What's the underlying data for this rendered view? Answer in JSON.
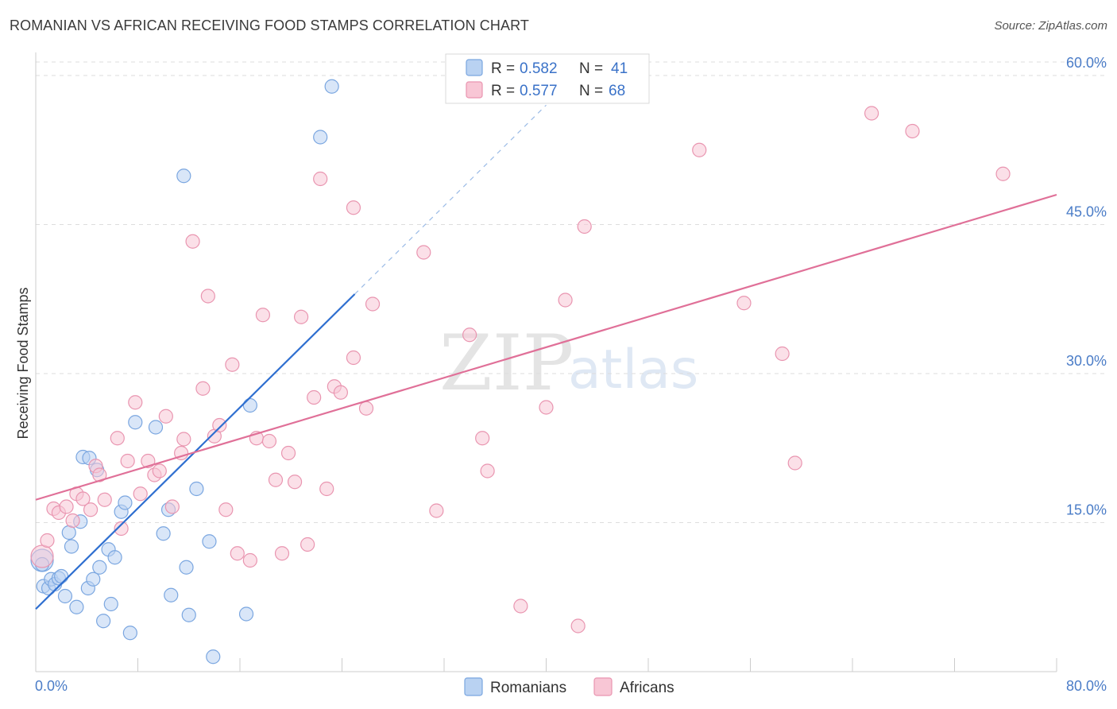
{
  "header": {
    "title": "ROMANIAN VS AFRICAN RECEIVING FOOD STAMPS CORRELATION CHART",
    "source": "Source: ZipAtlas.com"
  },
  "watermark": {
    "zip": "ZIP",
    "atlas": "atlas"
  },
  "legend": {
    "romanians": {
      "r_label": "R =",
      "r_value": "0.582",
      "n_label": "N =",
      "n_value": "41"
    },
    "africans": {
      "r_label": "R =",
      "r_value": "0.577",
      "n_label": "N =",
      "n_value": "68"
    }
  },
  "colors": {
    "romanians_fill": "#b9d2f2",
    "romanians_stroke": "#7aa6e0",
    "romanians_line": "#2f6fd0",
    "africans_fill": "#f8c6d5",
    "africans_stroke": "#e995b0",
    "africans_line": "#e07098",
    "grid": "#dddddd",
    "tick_label": "#4a7cc7"
  },
  "chart_data": {
    "type": "scatter",
    "title": "ROMANIAN VS AFRICAN RECEIVING FOOD STAMPS CORRELATION CHART",
    "xlabel": "",
    "ylabel": "Receiving Food Stamps",
    "xlim": [
      0,
      80
    ],
    "ylim": [
      0,
      62
    ],
    "x_tick_labels": [
      "0.0%",
      "80.0%"
    ],
    "y_ticks": [
      15,
      30,
      45,
      60
    ],
    "y_tick_labels": [
      "15.0%",
      "30.0%",
      "45.0%",
      "60.0%"
    ],
    "grid": true,
    "legend_position": "top-center",
    "series": [
      {
        "name": "Romanians",
        "points": [
          [
            0.5,
            11.2
          ],
          [
            0.5,
            10.8
          ],
          [
            0.6,
            8.6
          ],
          [
            1.0,
            8.4
          ],
          [
            1.2,
            9.3
          ],
          [
            1.5,
            8.8
          ],
          [
            1.8,
            9.4
          ],
          [
            2.0,
            9.6
          ],
          [
            2.3,
            7.6
          ],
          [
            2.6,
            14.0
          ],
          [
            2.8,
            12.6
          ],
          [
            3.2,
            6.5
          ],
          [
            3.5,
            15.1
          ],
          [
            3.7,
            21.6
          ],
          [
            4.1,
            8.4
          ],
          [
            4.2,
            21.5
          ],
          [
            4.5,
            9.3
          ],
          [
            4.8,
            20.3
          ],
          [
            5.0,
            10.5
          ],
          [
            5.3,
            5.1
          ],
          [
            5.7,
            12.3
          ],
          [
            5.9,
            6.8
          ],
          [
            6.2,
            11.5
          ],
          [
            6.7,
            16.1
          ],
          [
            7.0,
            17.0
          ],
          [
            7.4,
            3.9
          ],
          [
            7.8,
            25.1
          ],
          [
            9.4,
            24.6
          ],
          [
            10.0,
            13.9
          ],
          [
            10.4,
            16.3
          ],
          [
            10.6,
            7.7
          ],
          [
            11.6,
            49.9
          ],
          [
            11.8,
            10.5
          ],
          [
            12.0,
            5.7
          ],
          [
            12.6,
            18.4
          ],
          [
            13.6,
            13.1
          ],
          [
            13.9,
            1.5
          ],
          [
            16.5,
            5.8
          ],
          [
            16.8,
            26.8
          ],
          [
            22.3,
            53.8
          ],
          [
            23.2,
            58.9
          ]
        ],
        "trend": {
          "x": [
            0,
            25
          ],
          "y": [
            6.3,
            38.0
          ],
          "dashed_extension_to_x": 40
        }
      },
      {
        "name": "Africans",
        "points": [
          [
            0.5,
            11.6
          ],
          [
            0.9,
            13.2
          ],
          [
            1.4,
            16.4
          ],
          [
            1.8,
            16.0
          ],
          [
            2.4,
            16.6
          ],
          [
            2.9,
            15.2
          ],
          [
            3.2,
            17.9
          ],
          [
            3.7,
            17.4
          ],
          [
            4.3,
            16.3
          ],
          [
            4.7,
            20.7
          ],
          [
            5.0,
            19.8
          ],
          [
            5.4,
            17.3
          ],
          [
            6.4,
            23.5
          ],
          [
            6.7,
            14.4
          ],
          [
            7.2,
            21.2
          ],
          [
            7.8,
            27.1
          ],
          [
            8.2,
            17.9
          ],
          [
            8.8,
            21.2
          ],
          [
            9.3,
            19.8
          ],
          [
            9.7,
            20.2
          ],
          [
            10.2,
            25.7
          ],
          [
            10.7,
            16.6
          ],
          [
            11.4,
            22.0
          ],
          [
            11.6,
            23.4
          ],
          [
            12.3,
            43.3
          ],
          [
            13.1,
            28.5
          ],
          [
            13.5,
            37.8
          ],
          [
            14.0,
            23.7
          ],
          [
            14.4,
            24.8
          ],
          [
            14.9,
            16.3
          ],
          [
            15.4,
            30.9
          ],
          [
            15.8,
            11.9
          ],
          [
            16.8,
            11.2
          ],
          [
            17.3,
            23.5
          ],
          [
            17.8,
            35.9
          ],
          [
            18.3,
            23.2
          ],
          [
            18.8,
            19.3
          ],
          [
            19.3,
            11.9
          ],
          [
            19.8,
            22.0
          ],
          [
            20.3,
            19.1
          ],
          [
            20.8,
            35.7
          ],
          [
            21.3,
            12.8
          ],
          [
            21.8,
            27.6
          ],
          [
            22.3,
            49.6
          ],
          [
            22.8,
            18.4
          ],
          [
            23.4,
            28.7
          ],
          [
            23.9,
            28.1
          ],
          [
            24.9,
            46.7
          ],
          [
            24.9,
            31.6
          ],
          [
            25.9,
            26.5
          ],
          [
            26.4,
            37.0
          ],
          [
            30.4,
            42.2
          ],
          [
            31.4,
            16.2
          ],
          [
            34.0,
            33.9
          ],
          [
            35.0,
            23.5
          ],
          [
            35.4,
            20.2
          ],
          [
            38.0,
            6.6
          ],
          [
            40.0,
            26.6
          ],
          [
            41.5,
            37.4
          ],
          [
            42.5,
            4.6
          ],
          [
            43.0,
            44.8
          ],
          [
            52.0,
            52.5
          ],
          [
            55.5,
            37.1
          ],
          [
            58.5,
            32.0
          ],
          [
            59.5,
            21.0
          ],
          [
            65.5,
            56.2
          ],
          [
            68.7,
            54.4
          ],
          [
            75.8,
            50.1
          ]
        ],
        "trend": {
          "x": [
            0,
            80
          ],
          "y": [
            17.3,
            48.0
          ]
        }
      }
    ]
  }
}
